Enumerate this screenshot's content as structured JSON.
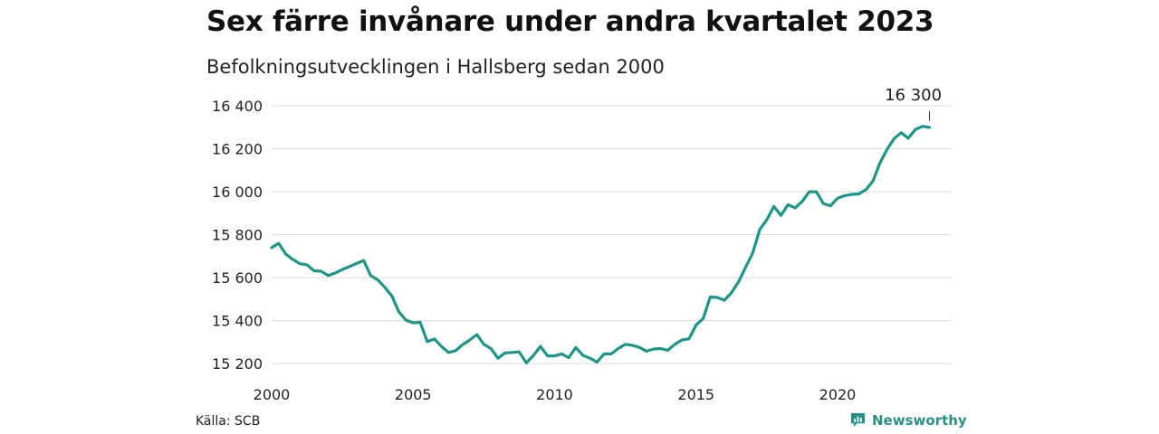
{
  "title": "Sex färre invånare under andra kvartalet 2023",
  "subtitle": "Befolkningsutvecklingen i Hallsberg sedan 2000",
  "source": "Källa: SCB",
  "brand": "Newsworthy",
  "colors": {
    "line": "#1f9585",
    "grid": "#d9d9d9",
    "brand": "#2b8f84"
  },
  "chart_data": {
    "type": "line",
    "title": "Sex färre invånare under andra kvartalet 2023",
    "subtitle": "Befolkningsutvecklingen i Hallsberg sedan 2000",
    "ylim": [
      15150,
      16430
    ],
    "xlim": [
      2000,
      2024
    ],
    "y_ticks": [
      15200,
      15400,
      15600,
      15800,
      16000,
      16200,
      16400
    ],
    "y_tick_labels": [
      "15 200",
      "15 400",
      "15 600",
      "15 800",
      "16 000",
      "16 200",
      "16 400"
    ],
    "x_ticks": [
      2000,
      2005,
      2010,
      2015,
      2020
    ],
    "x_tick_labels": [
      "2000",
      "2005",
      "2010",
      "2015",
      "2020"
    ],
    "grid": "horizontal",
    "annotation": {
      "label": "16 300",
      "x": 2023.25,
      "y": 16300
    },
    "series": [
      {
        "x": [
          2000.0,
          2000.25,
          2000.5,
          2000.75,
          2001.0,
          2001.25,
          2001.5,
          2001.75,
          2002.0,
          2002.25,
          2002.5,
          2002.75,
          2003.0,
          2003.25,
          2003.5,
          2003.75,
          2004.0,
          2004.25,
          2004.5,
          2004.75,
          2005.0,
          2005.25,
          2005.5,
          2005.75,
          2006.0,
          2006.25,
          2006.5,
          2006.75,
          2007.0,
          2007.25,
          2007.5,
          2007.75,
          2008.0,
          2008.25,
          2008.5,
          2008.75,
          2009.0,
          2009.25,
          2009.5,
          2009.75,
          2010.0,
          2010.25,
          2010.5,
          2010.75,
          2011.0,
          2011.25,
          2011.5,
          2011.75,
          2012.0,
          2012.25,
          2012.5,
          2012.75,
          2013.0,
          2013.25,
          2013.5,
          2013.75,
          2014.0,
          2014.25,
          2014.5,
          2014.75,
          2015.0,
          2015.25,
          2015.5,
          2015.75,
          2016.0,
          2016.25,
          2016.5,
          2016.75,
          2017.0,
          2017.25,
          2017.5,
          2017.75,
          2018.0,
          2018.25,
          2018.5,
          2018.75,
          2019.0,
          2019.25,
          2019.5,
          2019.75,
          2020.0,
          2020.25,
          2020.5,
          2020.75,
          2021.0,
          2021.25,
          2021.5,
          2021.75,
          2022.0,
          2022.25,
          2022.5,
          2022.75,
          2023.0,
          2023.25
        ],
        "y": [
          15740,
          15760,
          15710,
          15685,
          15665,
          15660,
          15632,
          15630,
          15610,
          15622,
          15638,
          15652,
          15666,
          15680,
          15610,
          15590,
          15555,
          15515,
          15440,
          15402,
          15390,
          15392,
          15302,
          15315,
          15280,
          15252,
          15260,
          15288,
          15310,
          15335,
          15290,
          15270,
          15225,
          15250,
          15252,
          15255,
          15203,
          15238,
          15280,
          15236,
          15236,
          15245,
          15228,
          15275,
          15238,
          15225,
          15207,
          15245,
          15245,
          15270,
          15290,
          15285,
          15275,
          15258,
          15268,
          15270,
          15262,
          15290,
          15310,
          15315,
          15380,
          15410,
          15510,
          15508,
          15495,
          15530,
          15580,
          15648,
          15715,
          15825,
          15870,
          15932,
          15890,
          15940,
          15925,
          15955,
          16000,
          16000,
          15945,
          15935,
          15970,
          15982,
          15988,
          15990,
          16010,
          16050,
          16135,
          16198,
          16248,
          16275,
          16250,
          16290,
          16305,
          16300
        ]
      }
    ]
  }
}
